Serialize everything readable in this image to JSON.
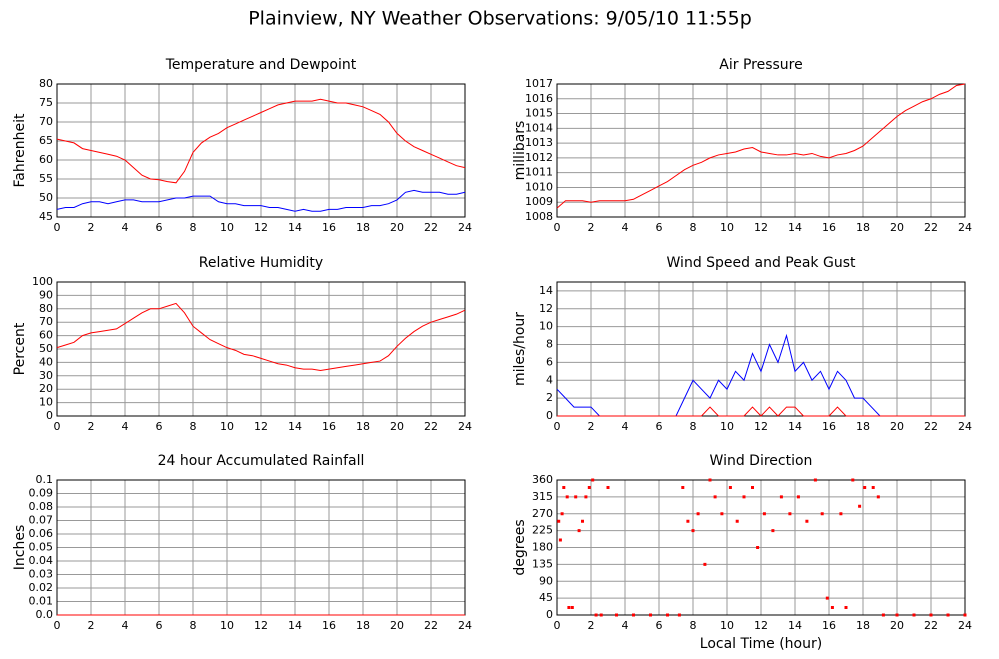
{
  "header": {
    "title": "Plainview, NY Weather Observations: 9/05/10 11:55p"
  },
  "chart_data": [
    {
      "type": "line",
      "title": "Temperature and Dewpoint",
      "y_label": "Fahrenheit",
      "x": [
        0,
        0.5,
        1,
        1.5,
        2,
        2.5,
        3,
        3.5,
        4,
        4.5,
        5,
        5.5,
        6,
        6.5,
        7,
        7.5,
        8,
        8.5,
        9,
        9.5,
        10,
        10.5,
        11,
        11.5,
        12,
        12.5,
        13,
        13.5,
        14,
        14.5,
        15,
        15.5,
        16,
        16.5,
        17,
        17.5,
        18,
        18.5,
        19,
        19.5,
        20,
        20.5,
        21,
        21.5,
        22,
        22.5,
        23,
        23.5,
        24
      ],
      "series": [
        {
          "color": "#ff0000",
          "values": [
            65.5,
            65,
            64.5,
            63,
            62.5,
            62,
            61.5,
            61,
            60,
            58,
            56,
            55,
            54.8,
            54.3,
            54,
            57,
            62,
            64.5,
            66,
            67,
            68.5,
            69.5,
            70.5,
            71.5,
            72.5,
            73.5,
            74.5,
            75,
            75.5,
            75.5,
            75.5,
            76,
            75.5,
            75,
            75,
            74.5,
            74,
            73,
            72,
            70,
            67,
            65,
            63.5,
            62.5,
            61.5,
            60.5,
            59.5,
            58.5,
            58
          ]
        },
        {
          "color": "#0000ff",
          "values": [
            47,
            47.5,
            47.5,
            48.5,
            49,
            49,
            48.5,
            49,
            49.5,
            49.5,
            49,
            49,
            49,
            49.5,
            50,
            50,
            50.5,
            50.5,
            50.5,
            49,
            48.5,
            48.5,
            48,
            48,
            48,
            47.5,
            47.5,
            47,
            46.5,
            47,
            46.5,
            46.5,
            47,
            47,
            47.5,
            47.5,
            47.5,
            48,
            48,
            48.5,
            49.5,
            51.5,
            52,
            51.5,
            51.5,
            51.5,
            51,
            51,
            51.5
          ]
        }
      ],
      "xlim": [
        0,
        24
      ],
      "xticks": [
        0,
        2,
        4,
        6,
        8,
        10,
        12,
        14,
        16,
        18,
        20,
        22,
        24
      ],
      "ylim": [
        45,
        80
      ],
      "yticks": [
        45,
        50,
        55,
        60,
        65,
        70,
        75,
        80
      ],
      "grid": true
    },
    {
      "type": "line",
      "title": "Air Pressure",
      "y_label": "millibars",
      "x": [
        0,
        0.5,
        1,
        1.5,
        2,
        2.5,
        3,
        3.5,
        4,
        4.5,
        5,
        5.5,
        6,
        6.5,
        7,
        7.5,
        8,
        8.5,
        9,
        9.5,
        10,
        10.5,
        11,
        11.5,
        12,
        12.5,
        13,
        13.5,
        14,
        14.5,
        15,
        15.5,
        16,
        16.5,
        17,
        17.5,
        18,
        18.5,
        19,
        19.5,
        20,
        20.5,
        21,
        21.5,
        22,
        22.5,
        23,
        23.5,
        24
      ],
      "series": [
        {
          "color": "#ff0000",
          "values": [
            1008.6,
            1009.1,
            1009.1,
            1009.1,
            1009,
            1009.1,
            1009.1,
            1009.1,
            1009.1,
            1009.2,
            1009.5,
            1009.8,
            1010.1,
            1010.4,
            1010.8,
            1011.2,
            1011.5,
            1011.7,
            1012,
            1012.2,
            1012.3,
            1012.4,
            1012.6,
            1012.7,
            1012.4,
            1012.3,
            1012.2,
            1012.2,
            1012.3,
            1012.2,
            1012.3,
            1012.1,
            1012,
            1012.2,
            1012.3,
            1012.5,
            1012.8,
            1013.3,
            1013.8,
            1014.3,
            1014.8,
            1015.2,
            1015.5,
            1015.8,
            1016,
            1016.3,
            1016.5,
            1016.9,
            1017
          ]
        }
      ],
      "xlim": [
        0,
        24
      ],
      "xticks": [
        0,
        2,
        4,
        6,
        8,
        10,
        12,
        14,
        16,
        18,
        20,
        22,
        24
      ],
      "ylim": [
        1008,
        1017
      ],
      "yticks": [
        1008,
        1009,
        1010,
        1011,
        1012,
        1013,
        1014,
        1015,
        1016,
        1017
      ],
      "grid": true
    },
    {
      "type": "line",
      "title": "Relative Humidity",
      "y_label": "Percent",
      "x": [
        0,
        0.5,
        1,
        1.5,
        2,
        2.5,
        3,
        3.5,
        4,
        4.5,
        5,
        5.5,
        6,
        6.5,
        7,
        7.5,
        8,
        8.5,
        9,
        9.5,
        10,
        10.5,
        11,
        11.5,
        12,
        12.5,
        13,
        13.5,
        14,
        14.5,
        15,
        15.5,
        16,
        16.5,
        17,
        17.5,
        18,
        18.5,
        19,
        19.5,
        20,
        20.5,
        21,
        21.5,
        22,
        22.5,
        23,
        23.5,
        24
      ],
      "series": [
        {
          "color": "#ff0000",
          "values": [
            51,
            53,
            55,
            60,
            62,
            63,
            64,
            65,
            69,
            73,
            77,
            80,
            80,
            82,
            84,
            77,
            67,
            62,
            57,
            54,
            51,
            49,
            46,
            45,
            43,
            41,
            39,
            38,
            36,
            35,
            35,
            34,
            35,
            36,
            37,
            38,
            39,
            40,
            41,
            45,
            52,
            58,
            63,
            67,
            70,
            72,
            74,
            76,
            79
          ]
        }
      ],
      "xlim": [
        0,
        24
      ],
      "xticks": [
        0,
        2,
        4,
        6,
        8,
        10,
        12,
        14,
        16,
        18,
        20,
        22,
        24
      ],
      "ylim": [
        0,
        100
      ],
      "yticks": [
        0,
        10,
        20,
        30,
        40,
        50,
        60,
        70,
        80,
        90,
        100
      ],
      "grid": true
    },
    {
      "type": "line",
      "title": "Wind Speed and Peak Gust",
      "y_label": "miles/hour",
      "x": [
        0,
        0.5,
        1,
        1.5,
        2,
        2.5,
        3,
        3.5,
        4,
        4.5,
        5,
        5.5,
        6,
        6.5,
        7,
        7.5,
        8,
        8.5,
        9,
        9.5,
        10,
        10.5,
        11,
        11.5,
        12,
        12.5,
        13,
        13.5,
        14,
        14.5,
        15,
        15.5,
        16,
        16.5,
        17,
        17.5,
        18,
        18.5,
        19,
        19.5,
        20,
        20.5,
        21,
        21.5,
        22,
        22.5,
        23,
        23.5,
        24
      ],
      "series": [
        {
          "color": "#0000ff",
          "values": [
            3,
            2,
            1,
            1,
            1,
            0,
            0,
            0,
            0,
            0,
            0,
            0,
            0,
            0,
            0,
            2,
            4,
            3,
            2,
            4,
            3,
            5,
            4,
            7,
            5,
            8,
            6,
            9,
            5,
            6,
            4,
            5,
            3,
            5,
            4,
            2,
            2,
            1,
            0,
            0,
            0,
            0,
            0,
            0,
            0,
            0,
            0,
            0,
            0
          ]
        },
        {
          "color": "#ff0000",
          "values": [
            0,
            0,
            0,
            0,
            0,
            0,
            0,
            0,
            0,
            0,
            0,
            0,
            0,
            0,
            0,
            0,
            0,
            0,
            1,
            0,
            0,
            0,
            0,
            1,
            0,
            1,
            0,
            1,
            1,
            0,
            0,
            0,
            0,
            1,
            0,
            0,
            0,
            0,
            0,
            0,
            0,
            0,
            0,
            0,
            0,
            0,
            0,
            0,
            0
          ]
        }
      ],
      "xlim": [
        0,
        24
      ],
      "xticks": [
        0,
        2,
        4,
        6,
        8,
        10,
        12,
        14,
        16,
        18,
        20,
        22,
        24
      ],
      "ylim": [
        0,
        15
      ],
      "yticks": [
        0,
        2,
        4,
        6,
        8,
        10,
        12,
        14
      ],
      "grid": true
    },
    {
      "type": "line",
      "title": "24 hour Accumulated Rainfall",
      "y_label": "Inches",
      "x": [
        0,
        24
      ],
      "series": [
        {
          "color": "#ff0000",
          "values": [
            0,
            0
          ]
        }
      ],
      "xlim": [
        0,
        24
      ],
      "xticks": [
        0,
        2,
        4,
        6,
        8,
        10,
        12,
        14,
        16,
        18,
        20,
        22,
        24
      ],
      "ylim": [
        0,
        0.1
      ],
      "yticks": [
        {
          "value": 0,
          "label": "0.0"
        },
        0.01,
        0.02,
        0.03,
        0.04,
        0.05,
        0.06,
        0.07,
        0.08,
        0.09,
        0.1
      ],
      "grid": true
    },
    {
      "type": "scatter",
      "title": "Wind Direction",
      "y_label": "degrees",
      "x_label": "Local Time (hour)",
      "x": [
        0.1,
        0.2,
        0.3,
        0.4,
        0.6,
        0.7,
        0.9,
        1.1,
        1.3,
        1.5,
        1.7,
        1.9,
        2.1,
        2.3,
        2.6,
        3.0,
        3.5,
        4.5,
        5.5,
        6.5,
        7.2,
        7.4,
        7.7,
        8.0,
        8.3,
        8.7,
        9.0,
        9.3,
        9.7,
        10.2,
        10.6,
        11.0,
        11.5,
        11.8,
        12.2,
        12.7,
        13.2,
        13.7,
        14.2,
        14.7,
        15.2,
        15.6,
        15.9,
        16.2,
        16.7,
        17.0,
        17.4,
        17.8,
        18.1,
        18.6,
        18.9,
        19.2,
        20,
        21,
        22,
        23,
        24
      ],
      "series": [
        {
          "color": "#ff0000",
          "values": [
            250,
            200,
            270,
            340,
            315,
            20,
            20,
            315,
            225,
            250,
            315,
            340,
            360,
            0,
            0,
            340,
            0,
            0,
            0,
            0,
            0,
            340,
            250,
            225,
            270,
            135,
            360,
            315,
            270,
            340,
            250,
            315,
            340,
            180,
            270,
            225,
            315,
            270,
            315,
            250,
            360,
            270,
            45,
            20,
            270,
            20,
            360,
            290,
            340,
            340,
            315,
            0,
            0,
            0,
            0,
            0,
            0
          ]
        }
      ],
      "xlim": [
        0,
        24
      ],
      "xticks": [
        0,
        2,
        4,
        6,
        8,
        10,
        12,
        14,
        16,
        18,
        20,
        22,
        24
      ],
      "ylim": [
        0,
        360
      ],
      "yticks": [
        0,
        45,
        90,
        135,
        180,
        225,
        270,
        315,
        360
      ],
      "grid": true
    }
  ]
}
